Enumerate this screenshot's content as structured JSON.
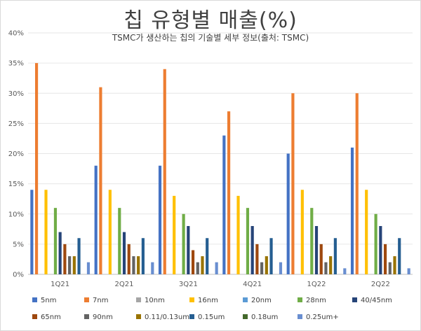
{
  "header": {
    "title": "칩 유형별 매출(%)",
    "subtitle": "TSMC가 생산하는 칩의 기술별 세부 정보(출처: TSMC)"
  },
  "chart_data": {
    "type": "bar",
    "title": "칩 유형별 매출(%)",
    "subtitle": "TSMC가 생산하는 칩의 기술별 세부 정보(출처: TSMC)",
    "categories": [
      "1Q21",
      "2Q21",
      "3Q21",
      "4Q21",
      "1Q22",
      "2Q22"
    ],
    "ylim": [
      0,
      40
    ],
    "yticks": [
      "0%",
      "5%",
      "10%",
      "15%",
      "20%",
      "25%",
      "30%",
      "35%",
      "40%"
    ],
    "grid": true,
    "legend_position": "bottom",
    "series": [
      {
        "name": "5nm",
        "color": "#4472c4",
        "values": [
          14,
          18,
          18,
          23,
          20,
          21
        ]
      },
      {
        "name": "7nm",
        "color": "#ed7d31",
        "values": [
          35,
          31,
          34,
          27,
          30,
          30
        ]
      },
      {
        "name": "10nm",
        "color": "#a5a5a5",
        "values": [
          0,
          0,
          0,
          0,
          0,
          0
        ]
      },
      {
        "name": "16nm",
        "color": "#ffc000",
        "values": [
          14,
          14,
          13,
          13,
          14,
          14
        ]
      },
      {
        "name": "20nm",
        "color": "#5b9bd5",
        "values": [
          0,
          0,
          0,
          0,
          0,
          0
        ]
      },
      {
        "name": "28nm",
        "color": "#70ad47",
        "values": [
          11,
          11,
          10,
          11,
          11,
          10
        ]
      },
      {
        "name": "40/45nm",
        "color": "#264478",
        "values": [
          7,
          7,
          8,
          8,
          8,
          8
        ]
      },
      {
        "name": "65nm",
        "color": "#9e480e",
        "values": [
          5,
          5,
          4,
          5,
          5,
          5
        ]
      },
      {
        "name": "90nm",
        "color": "#636363",
        "values": [
          3,
          3,
          2,
          2,
          2,
          2
        ]
      },
      {
        "name": "0.11/0.13um",
        "color": "#997300",
        "values": [
          3,
          3,
          3,
          3,
          3,
          3
        ]
      },
      {
        "name": "0.15um",
        "color": "#255e91",
        "values": [
          6,
          6,
          6,
          6,
          6,
          6
        ]
      },
      {
        "name": "0.18um",
        "color": "#43682b",
        "values": [
          0,
          0,
          0,
          0,
          0,
          0
        ]
      },
      {
        "name": "0.25um+",
        "color": "#698ed0",
        "values": [
          2,
          2,
          2,
          2,
          1,
          1
        ]
      }
    ]
  }
}
